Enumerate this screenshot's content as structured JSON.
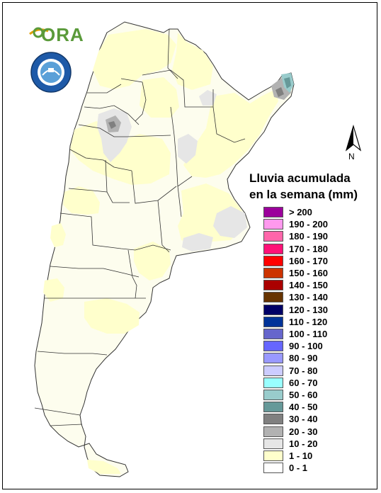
{
  "logos": {
    "ora_text": "ORA",
    "seal_text": "SERVICIO METEOROLÓGICO NACIONAL ARGENTINA"
  },
  "legend": {
    "title_line1": "Lluvia acumulada",
    "title_line2": "en la semana (mm)",
    "items": [
      {
        "label": "> 200",
        "color": "#9b009b"
      },
      {
        "label": "190 - 200",
        "color": "#ff99ee"
      },
      {
        "label": "180 - 190",
        "color": "#ff66aa"
      },
      {
        "label": "170 - 180",
        "color": "#ff1177"
      },
      {
        "label": "160 - 170",
        "color": "#ff0000"
      },
      {
        "label": "150 - 160",
        "color": "#cc3300"
      },
      {
        "label": "140 - 150",
        "color": "#aa0000"
      },
      {
        "label": "130 - 140",
        "color": "#663300"
      },
      {
        "label": "120 - 130",
        "color": "#000066"
      },
      {
        "label": "110 - 120",
        "color": "#003399"
      },
      {
        "label": "100 - 110",
        "color": "#6666cc"
      },
      {
        "label": "90 - 100",
        "color": "#6666ff"
      },
      {
        "label": "80 - 90",
        "color": "#9999ff"
      },
      {
        "label": "70 - 80",
        "color": "#ccccff"
      },
      {
        "label": "60 - 70",
        "color": "#99ffff"
      },
      {
        "label": "50 - 60",
        "color": "#99cccc"
      },
      {
        "label": "40 - 50",
        "color": "#669999"
      },
      {
        "label": "30 - 40",
        "color": "#808080"
      },
      {
        "label": "20 - 30",
        "color": "#b2b2b2"
      },
      {
        "label": "10 - 20",
        "color": "#e6e6e6"
      },
      {
        "label": "1 - 10",
        "color": "#ffffcc"
      },
      {
        "label": "0 - 1",
        "color": "#ffffff"
      }
    ]
  },
  "north_arrow": {
    "label": "N"
  }
}
